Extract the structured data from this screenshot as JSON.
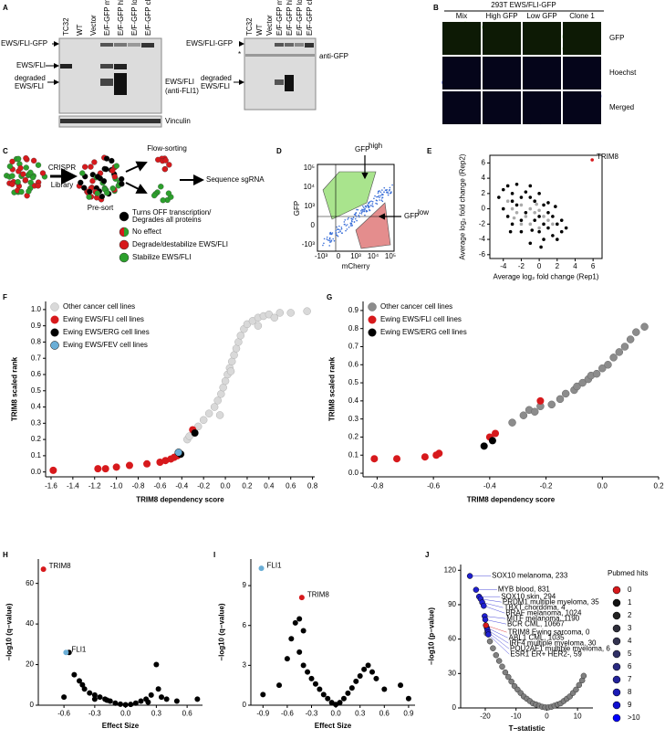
{
  "panels": {
    "A": {
      "label": "A",
      "lanes": [
        "TC32",
        "WT",
        "Vector",
        "E/F-GFP mix",
        "E/F-GFP high GFP",
        "E/F-GFP low GFP",
        "E/F-GFP clone 1"
      ],
      "blot1": {
        "left": [
          "EWS/FLI-GFP",
          "EWS/FLI",
          "degraded",
          "EWS/FLI"
        ],
        "right": [
          "EWS/FLI",
          "(anti-FLI1)"
        ],
        "loading": "Vinculin"
      },
      "blot2": {
        "left": [
          "EWS/FLI-GFP",
          "*",
          "degraded",
          "EWS/FLI"
        ],
        "right": "anti-GFP"
      }
    },
    "B": {
      "label": "B",
      "header": "293T EWS/FLI-GFP",
      "columns": [
        "Mix",
        "High GFP",
        "Low GFP",
        "Clone 1"
      ],
      "rows": [
        "GFP",
        "Hoechst",
        "Merged"
      ]
    },
    "C": {
      "label": "C",
      "library": [
        "CRISPR",
        "Library"
      ],
      "presort": "Pre-sort",
      "sorting": "Flow-sorting",
      "sequence": "Sequence sgRNA",
      "legend": [
        [
          "Turns OFF transcription/",
          "Degrades all proteins"
        ],
        [
          "No effect"
        ],
        [
          "Degrade/destabilize EWS/FLI"
        ],
        [
          "Stabilize EWS/FLI"
        ]
      ]
    },
    "D": {
      "label": "D",
      "ylabel": "GFP",
      "xlabel": "mCherry",
      "gate_high": [
        "GFP",
        "high"
      ],
      "gate_low": [
        "GFP",
        "low"
      ],
      "yticks": [
        "10⁵",
        "10⁴",
        "10³",
        "0",
        "-10³"
      ],
      "xticks": [
        "-10³",
        "0",
        "10³",
        "10⁴",
        "10⁵"
      ]
    }
  },
  "chart_data": [
    {
      "type": "scatter",
      "label": "E",
      "frame": "box",
      "xlabel": "Average log₂ fold change (Rep1)",
      "ylabel": "Average log₂ fold change (Rep2)",
      "xlim": [
        -5.5,
        7
      ],
      "ylim": [
        -6.5,
        7
      ],
      "xticks": [
        -4,
        -2,
        0,
        2,
        4,
        6
      ],
      "yticks": [
        -6,
        -4,
        -2,
        0,
        2,
        4,
        6
      ],
      "series": [
        {
          "color": "#000000",
          "x": [
            -4,
            -3.5,
            -3,
            -2.5,
            -2,
            -1.5,
            -1,
            -0.5,
            0,
            0.5,
            1,
            1.5,
            2,
            2.5,
            3,
            -4,
            -3.5,
            -3,
            -2,
            -1,
            0,
            0.5,
            1,
            1.5,
            2,
            -2.5,
            -1.5,
            -0.5,
            0.5,
            -3,
            -1,
            0,
            1,
            -2,
            2.5,
            -4.5,
            -3.2,
            0.2,
            1.8,
            -0.8
          ],
          "y": [
            2.5,
            3,
            2,
            3.2,
            1.5,
            2.2,
            3,
            1,
            2,
            0.5,
            -0.5,
            -1,
            -2,
            -1.5,
            -2.5,
            0,
            -1,
            -2,
            -3,
            -4.5,
            -3,
            -4,
            -2.5,
            -3.5,
            -4,
            0.5,
            -0.5,
            -1.5,
            -2,
            1,
            1.5,
            -1,
            0.8,
            -1.5,
            -3,
            1.5,
            -3,
            -5,
            0.3,
            -2.8
          ]
        },
        {
          "color": "#aaaaaa",
          "x": [
            -3.5,
            -3,
            -2.5,
            -2,
            -1.5,
            -1,
            -0.5,
            0,
            0.5,
            1,
            -2,
            -1,
            0,
            1.5,
            -2.8,
            -0.3
          ],
          "y": [
            1,
            0,
            -0.5,
            0.5,
            -1,
            0,
            -0.5,
            -0.2,
            -1,
            -1.5,
            -2,
            -2,
            -2.5,
            -2,
            -1.2,
            0.6
          ]
        },
        {
          "color": "#d7191c",
          "x": [
            5.9
          ],
          "y": [
            6.4
          ],
          "labels": [
            "TRIM8"
          ]
        }
      ]
    },
    {
      "type": "scatter",
      "label": "F",
      "legend": "upper left",
      "xlabel": "TRIM8 dependency score",
      "ylabel": "TRIM8 scaled rank",
      "xlim": [
        -1.65,
        0.82
      ],
      "ylim": [
        -0.03,
        1.05
      ],
      "xticks": [
        -1.6,
        -1.4,
        -1.2,
        {
          "value": -1,
          "label": "-1.0"
        },
        -0.8,
        -0.6,
        -0.4,
        -0.2,
        {
          "value": 0,
          "label": "0.0"
        },
        0.2,
        0.4,
        0.6,
        0.8
      ],
      "yticks": [
        {
          "value": 0,
          "label": "0.0"
        },
        0.1,
        0.2,
        0.3,
        0.4,
        0.5,
        0.6,
        0.7,
        0.8,
        0.9,
        {
          "value": 1,
          "label": "1.0"
        }
      ],
      "series": [
        {
          "name": "Other cancer cell lines",
          "color": "#d9d9d9",
          "edgecolor": "#b0b0b0",
          "x": [
            -0.25,
            -0.2,
            -0.15,
            -0.1,
            -0.07,
            -0.04,
            -0.02,
            0,
            0.02,
            0.04,
            0.06,
            0.08,
            0.1,
            0.12,
            0.14,
            0.17,
            0.2,
            0.25,
            0.3,
            0.35,
            0.4,
            0.5,
            0.6,
            0.75,
            -0.35,
            -0.33,
            0.3,
            0.45,
            -0.05,
            0.05
          ],
          "y": [
            0.28,
            0.32,
            0.36,
            0.4,
            0.44,
            0.48,
            0.52,
            0.56,
            0.6,
            0.64,
            0.68,
            0.72,
            0.76,
            0.8,
            0.84,
            0.88,
            0.91,
            0.93,
            0.95,
            0.96,
            0.97,
            0.98,
            0.98,
            0.99,
            0.2,
            0.22,
            0.9,
            0.95,
            0.35,
            0.62
          ]
        },
        {
          "name": "Ewing EWS/FLI cell lines",
          "color": "#d7191c",
          "x": [
            -1.58,
            -1.17,
            -1.1,
            -1,
            -0.88,
            -0.72,
            -0.6,
            -0.55,
            -0.5,
            -0.47,
            -0.44,
            -0.3
          ],
          "y": [
            0.01,
            0.02,
            0.02,
            0.03,
            0.04,
            0.05,
            0.06,
            0.07,
            0.08,
            0.09,
            0.1,
            0.26
          ]
        },
        {
          "name": "Ewing EWS/ERG cell lines",
          "color": "#000000",
          "x": [
            -0.28,
            -0.41
          ],
          "y": [
            0.24,
            0.11
          ]
        },
        {
          "name": "Ewing EWS/FEV cell lines",
          "color": "#6baed6",
          "edgecolor": "#000000",
          "x": [
            -0.43
          ],
          "y": [
            0.12
          ]
        }
      ]
    },
    {
      "type": "scatter",
      "label": "G",
      "legend": "upper left",
      "xlabel": "TRIM8 dependency score",
      "ylabel": "TRIM8 scaled rank",
      "xlim": [
        -0.85,
        0.2
      ],
      "ylim": [
        -0.02,
        0.95
      ],
      "xticks": [
        -0.8,
        -0.6,
        -0.4,
        -0.2,
        {
          "value": 0,
          "label": "0.0"
        },
        0.2
      ],
      "yticks": [
        {
          "value": 0,
          "label": "0.0"
        },
        0.1,
        0.2,
        0.3,
        0.4,
        0.5,
        0.6,
        0.7,
        0.8,
        0.9
      ],
      "series": [
        {
          "name": "Other cancer cell lines",
          "color": "#8c8c8c",
          "edgecolor": "#666666",
          "x": [
            -0.32,
            -0.28,
            -0.26,
            -0.24,
            -0.22,
            -0.18,
            -0.15,
            -0.13,
            -0.1,
            -0.09,
            -0.07,
            -0.05,
            -0.04,
            -0.02,
            0,
            0.02,
            0.04,
            0.06,
            0.08,
            0.1,
            0.12,
            0.15
          ],
          "y": [
            0.28,
            0.32,
            0.35,
            0.34,
            0.37,
            0.38,
            0.41,
            0.44,
            0.46,
            0.48,
            0.5,
            0.52,
            0.54,
            0.55,
            0.58,
            0.6,
            0.64,
            0.67,
            0.7,
            0.74,
            0.78,
            0.81
          ]
        },
        {
          "name": "Ewing EWS/FLI cell lines",
          "color": "#d7191c",
          "x": [
            -0.81,
            -0.73,
            -0.63,
            -0.59,
            -0.58,
            -0.4,
            -0.38,
            -0.22
          ],
          "y": [
            0.08,
            0.08,
            0.09,
            0.1,
            0.11,
            0.2,
            0.22,
            0.4
          ]
        },
        {
          "name": "Ewing EWS/ERG cell lines",
          "color": "#000000",
          "x": [
            -0.42,
            -0.39
          ],
          "y": [
            0.15,
            0.18
          ]
        }
      ]
    },
    {
      "type": "scatter",
      "label": "H",
      "xlabel": "Effect Size",
      "ylabel": "−log10 (q−value)",
      "xlim": [
        -0.85,
        0.75
      ],
      "ylim": [
        0,
        72
      ],
      "xticks": [
        -0.6,
        -0.3,
        {
          "value": 0,
          "label": "0.0"
        },
        0.3,
        0.6
      ],
      "yticks": [
        0,
        20,
        40,
        60
      ],
      "series": [
        {
          "color": "#000000",
          "x": [
            -0.55,
            -0.5,
            -0.45,
            -0.4,
            -0.35,
            -0.3,
            -0.25,
            -0.2,
            -0.15,
            -0.1,
            -0.05,
            0,
            0.05,
            0.1,
            0.15,
            0.2,
            0.25,
            0.3,
            0.32,
            0.35,
            0.4,
            0.5,
            0.7,
            -0.42,
            -0.6,
            -0.3,
            0.22,
            -0.18
          ],
          "y": [
            26,
            15,
            12,
            8,
            6,
            5,
            4,
            3,
            2,
            1,
            0.5,
            0.2,
            0.4,
            1,
            2,
            3,
            5,
            20,
            8,
            4,
            3,
            2,
            3,
            10,
            4,
            3,
            1.5,
            2.5
          ]
        },
        {
          "color": "#d7191c",
          "x": [
            -0.8
          ],
          "y": [
            67
          ],
          "labels": [
            "TRIM8"
          ]
        },
        {
          "color": "#6baed6",
          "x": [
            -0.58
          ],
          "y": [
            26
          ],
          "labels": [
            "FLI1"
          ]
        }
      ]
    },
    {
      "type": "scatter",
      "label": "I",
      "xlabel": "Effect Size",
      "ylabel": "−log10 (q−value)",
      "xlim": [
        -1.05,
        0.98
      ],
      "ylim": [
        0,
        11
      ],
      "xticks": [
        -0.9,
        -0.6,
        -0.3,
        {
          "value": 0,
          "label": "0.0"
        },
        0.3,
        0.6,
        0.9
      ],
      "yticks": [
        0,
        3,
        6,
        9
      ],
      "series": [
        {
          "color": "#000000",
          "x": [
            -0.6,
            -0.55,
            -0.5,
            -0.45,
            -0.4,
            -0.35,
            -0.3,
            -0.25,
            -0.2,
            -0.15,
            -0.1,
            -0.05,
            0,
            0.05,
            0.1,
            0.15,
            0.2,
            0.25,
            0.3,
            0.35,
            0.4,
            0.45,
            0.5,
            0.6,
            0.8,
            0.9,
            -0.7,
            -0.9,
            -0.45,
            -0.4
          ],
          "y": [
            3.5,
            5,
            6.2,
            4,
            3,
            2.5,
            2,
            1.6,
            1.2,
            0.8,
            0.5,
            0.2,
            0.05,
            0.2,
            0.5,
            0.9,
            1.3,
            1.8,
            2.2,
            2.7,
            3,
            2.5,
            2,
            1.2,
            1.5,
            0.5,
            1.5,
            0.8,
            6.5,
            5.6
          ]
        },
        {
          "color": "#6baed6",
          "x": [
            -0.92
          ],
          "y": [
            10.3
          ],
          "labels": [
            "FLI1"
          ]
        },
        {
          "color": "#d7191c",
          "x": [
            -0.42
          ],
          "y": [
            8.1
          ],
          "labels": [
            "TRIM8"
          ]
        }
      ]
    },
    {
      "type": "scatter",
      "label": "J",
      "legend": "right",
      "xlabel": "T−statistic",
      "ylabel": "−log10 (p−value)",
      "xlim": [
        -28,
        15
      ],
      "ylim": [
        0,
        125
      ],
      "xticks": [
        -20,
        -10,
        0,
        10
      ],
      "yticks": [
        0,
        30,
        60,
        90,
        120
      ],
      "legend_title": "Pubmed hits",
      "legend_entries": [
        {
          "name": "0",
          "color": "#d7191c"
        },
        {
          "name": "1",
          "color": "#111111"
        },
        {
          "name": "2",
          "color": "#222222"
        },
        {
          "name": "3",
          "color": "#2e2e3a"
        },
        {
          "name": "4",
          "color": "#333350"
        },
        {
          "name": "5",
          "color": "#303066"
        },
        {
          "name": "6",
          "color": "#2a2a80"
        },
        {
          "name": "7",
          "color": "#22229a"
        },
        {
          "name": "8",
          "color": "#1a1ab5"
        },
        {
          "name": "9",
          "color": "#1010d0"
        },
        {
          "name": ">10",
          "color": "#0000ff"
        }
      ],
      "series": [
        {
          "color": "#808080",
          "edgecolor": "#333333",
          "x": [
            -19.5,
            -18.5,
            -17.5,
            -16.5,
            -15.5,
            -14.5,
            -13.5,
            -12.5,
            -11.5,
            -10.5,
            -9.5,
            -8.5,
            -7.5,
            -6.5,
            -5.5,
            -4.5,
            -3.5,
            -2.5,
            -1.5,
            -0.5,
            0.5,
            1.5,
            2.5,
            3.5,
            4.5,
            5.5,
            6.5,
            7.5,
            8.5,
            9.5,
            10.5,
            11.5,
            12
          ],
          "y": [
            65,
            58,
            52,
            46,
            41,
            36,
            31,
            27,
            23,
            19,
            16,
            13,
            10,
            8,
            6,
            4,
            3,
            2,
            1,
            0.5,
            0.5,
            1,
            2,
            3,
            4,
            6,
            8,
            10,
            13,
            16,
            20,
            24,
            28
          ]
        },
        {
          "color": "#1f1fd0",
          "edgecolor": "#000000",
          "label_color": "#1f1fd0",
          "x": [
            -25,
            -23,
            -22,
            -21.5,
            -21,
            -20.5,
            -20.2,
            -20,
            -19.5,
            -19.3,
            -19.1,
            -19
          ],
          "y": [
            115,
            103,
            97,
            95,
            92,
            89,
            80,
            77,
            70,
            68,
            66,
            64
          ],
          "labels": [
            "SOX10 melanoma, 233",
            "MYB blood, 831",
            "SOX10 skin, 294",
            "PRDM1 multiple myeloma, 35",
            "TBXT chordoma, 4",
            "BRAF melanoma, 1024",
            "MITF melanoma, 1190",
            "BCR CML, 10667",
            "ABL1 CML, 1035",
            "IRF4 multiple myeloma, 30",
            "POU2AF1 multiple myeloma, 6",
            "ESR1 ER+ HER2-, 59"
          ]
        },
        {
          "color": "#d7191c",
          "edgecolor": "#000000",
          "label_color": "#d7191c",
          "label_size": 8,
          "x": [
            -19.8
          ],
          "y": [
            72
          ],
          "labels": [
            "TRIM8 Ewing sarcoma, 0"
          ]
        }
      ]
    }
  ]
}
